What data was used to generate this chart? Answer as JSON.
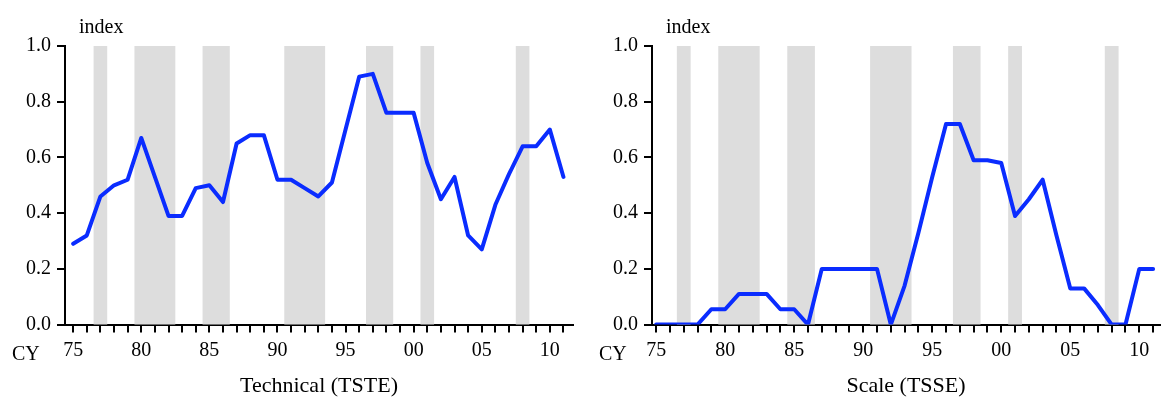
{
  "chart_data": [
    {
      "type": "line",
      "ylabel": "index",
      "xlabel": "Technical (TSTE)",
      "annotations": [
        "CY"
      ],
      "x": [
        1975,
        1976,
        1977,
        1978,
        1979,
        1980,
        1981,
        1982,
        1983,
        1984,
        1985,
        1986,
        1987,
        1988,
        1989,
        1990,
        1991,
        1992,
        1993,
        1994,
        1995,
        1996,
        1997,
        1998,
        1999,
        2000,
        2001,
        2002,
        2003,
        2004,
        2005,
        2006,
        2007,
        2008,
        2009,
        2010,
        2011
      ],
      "series": [
        {
          "color": "#0a2cff",
          "values": [
            0.29,
            0.32,
            0.46,
            0.5,
            0.52,
            0.67,
            0.53,
            0.39,
            0.39,
            0.49,
            0.5,
            0.44,
            0.65,
            0.68,
            0.68,
            0.52,
            0.52,
            0.49,
            0.46,
            0.51,
            0.7,
            0.89,
            0.9,
            0.76,
            0.76,
            0.76,
            0.58,
            0.45,
            0.53,
            0.32,
            0.27,
            0.43,
            0.54,
            0.64,
            0.64,
            0.7,
            0.53
          ]
        }
      ],
      "bands": [
        {
          "axis": "x",
          "from": 1976.5,
          "to": 1977.5,
          "color": "#dddddd"
        },
        {
          "axis": "x",
          "from": 1979.5,
          "to": 1982.5,
          "color": "#dddddd"
        },
        {
          "axis": "x",
          "from": 1984.5,
          "to": 1986.5,
          "color": "#dddddd"
        },
        {
          "axis": "x",
          "from": 1990.5,
          "to": 1993.5,
          "color": "#dddddd"
        },
        {
          "axis": "x",
          "from": 1996.5,
          "to": 1998.5,
          "color": "#dddddd"
        },
        {
          "axis": "x",
          "from": 2000.5,
          "to": 2001.5,
          "color": "#dddddd"
        },
        {
          "axis": "x",
          "from": 2007.5,
          "to": 2008.5,
          "color": "#dddddd"
        }
      ],
      "xlim": [
        1974.4,
        2011.7
      ],
      "xticks": [
        {
          "value": 1975,
          "label": "75"
        },
        {
          "value": 1976,
          "label": null
        },
        {
          "value": 1977,
          "label": null
        },
        {
          "value": 1978,
          "label": null
        },
        {
          "value": 1979,
          "label": null
        },
        {
          "value": 1980,
          "label": "80"
        },
        {
          "value": 1981,
          "label": null
        },
        {
          "value": 1982,
          "label": null
        },
        {
          "value": 1983,
          "label": null
        },
        {
          "value": 1984,
          "label": null
        },
        {
          "value": 1985,
          "label": "85"
        },
        {
          "value": 1986,
          "label": null
        },
        {
          "value": 1987,
          "label": null
        },
        {
          "value": 1988,
          "label": null
        },
        {
          "value": 1989,
          "label": null
        },
        {
          "value": 1990,
          "label": "90"
        },
        {
          "value": 1991,
          "label": null
        },
        {
          "value": 1992,
          "label": null
        },
        {
          "value": 1993,
          "label": null
        },
        {
          "value": 1994,
          "label": null
        },
        {
          "value": 1995,
          "label": "95"
        },
        {
          "value": 1996,
          "label": null
        },
        {
          "value": 1997,
          "label": null
        },
        {
          "value": 1998,
          "label": null
        },
        {
          "value": 1999,
          "label": null
        },
        {
          "value": 2000,
          "label": "00"
        },
        {
          "value": 2001,
          "label": null
        },
        {
          "value": 2002,
          "label": null
        },
        {
          "value": 2003,
          "label": null
        },
        {
          "value": 2004,
          "label": null
        },
        {
          "value": 2005,
          "label": "05"
        },
        {
          "value": 2006,
          "label": null
        },
        {
          "value": 2007,
          "label": null
        },
        {
          "value": 2008,
          "label": null
        },
        {
          "value": 2009,
          "label": null
        },
        {
          "value": 2010,
          "label": "10"
        },
        {
          "value": 2011,
          "label": null
        }
      ],
      "ylim": [
        0,
        1
      ],
      "yticks": [
        {
          "value": 0,
          "label": "0.0"
        },
        {
          "value": 0.2,
          "label": "0.2"
        },
        {
          "value": 0.4,
          "label": "0.4"
        },
        {
          "value": 0.6,
          "label": "0.6"
        },
        {
          "value": 0.8,
          "label": "0.8"
        },
        {
          "value": 1,
          "label": "1.0"
        }
      ],
      "grid": false,
      "legend": false,
      "marker": "none",
      "line_style": "solid"
    },
    {
      "type": "line",
      "ylabel": "index",
      "xlabel": "Scale (TSSE)",
      "annotations": [
        "CY"
      ],
      "x": [
        1975,
        1976,
        1977,
        1978,
        1979,
        1980,
        1981,
        1982,
        1983,
        1984,
        1985,
        1986,
        1987,
        1988,
        1989,
        1990,
        1991,
        1992,
        1993,
        1994,
        1995,
        1996,
        1997,
        1998,
        1999,
        2000,
        2001,
        2002,
        2003,
        2004,
        2005,
        2006,
        2007,
        2008,
        2009,
        2010,
        2011
      ],
      "series": [
        {
          "color": "#0a2cff",
          "values": [
            0,
            0,
            0,
            0,
            0.055,
            0.055,
            0.11,
            0.11,
            0.11,
            0.055,
            0.055,
            0,
            0.2,
            0.2,
            0.2,
            0.2,
            0.2,
            0,
            0.14,
            0.33,
            0.53,
            0.72,
            0.72,
            0.59,
            0.59,
            0.58,
            0.39,
            0.45,
            0.52,
            0.32,
            0.13,
            0.13,
            0.07,
            0,
            0,
            0.2,
            0.2
          ]
        }
      ],
      "bands": [
        {
          "axis": "x",
          "from": 1976.5,
          "to": 1977.5,
          "color": "#dddddd"
        },
        {
          "axis": "x",
          "from": 1979.5,
          "to": 1982.5,
          "color": "#dddddd"
        },
        {
          "axis": "x",
          "from": 1984.5,
          "to": 1986.5,
          "color": "#dddddd"
        },
        {
          "axis": "x",
          "from": 1990.5,
          "to": 1993.5,
          "color": "#dddddd"
        },
        {
          "axis": "x",
          "from": 1996.5,
          "to": 1998.5,
          "color": "#dddddd"
        },
        {
          "axis": "x",
          "from": 2000.5,
          "to": 2001.5,
          "color": "#dddddd"
        },
        {
          "axis": "x",
          "from": 2007.5,
          "to": 2008.5,
          "color": "#dddddd"
        }
      ],
      "xlim": [
        1974.7,
        2011.5
      ],
      "xticks": [
        {
          "value": 1975,
          "label": "75"
        },
        {
          "value": 1976,
          "label": null
        },
        {
          "value": 1977,
          "label": null
        },
        {
          "value": 1978,
          "label": null
        },
        {
          "value": 1979,
          "label": null
        },
        {
          "value": 1980,
          "label": "80"
        },
        {
          "value": 1981,
          "label": null
        },
        {
          "value": 1982,
          "label": null
        },
        {
          "value": 1983,
          "label": null
        },
        {
          "value": 1984,
          "label": null
        },
        {
          "value": 1985,
          "label": "85"
        },
        {
          "value": 1986,
          "label": null
        },
        {
          "value": 1987,
          "label": null
        },
        {
          "value": 1988,
          "label": null
        },
        {
          "value": 1989,
          "label": null
        },
        {
          "value": 1990,
          "label": "90"
        },
        {
          "value": 1991,
          "label": null
        },
        {
          "value": 1992,
          "label": null
        },
        {
          "value": 1993,
          "label": null
        },
        {
          "value": 1994,
          "label": null
        },
        {
          "value": 1995,
          "label": "95"
        },
        {
          "value": 1996,
          "label": null
        },
        {
          "value": 1997,
          "label": null
        },
        {
          "value": 1998,
          "label": null
        },
        {
          "value": 1999,
          "label": null
        },
        {
          "value": 2000,
          "label": "00"
        },
        {
          "value": 2001,
          "label": null
        },
        {
          "value": 2002,
          "label": null
        },
        {
          "value": 2003,
          "label": null
        },
        {
          "value": 2004,
          "label": null
        },
        {
          "value": 2005,
          "label": "05"
        },
        {
          "value": 2006,
          "label": null
        },
        {
          "value": 2007,
          "label": null
        },
        {
          "value": 2008,
          "label": null
        },
        {
          "value": 2009,
          "label": null
        },
        {
          "value": 2010,
          "label": "10"
        },
        {
          "value": 2011,
          "label": null
        }
      ],
      "ylim": [
        0,
        1
      ],
      "yticks": [
        {
          "value": 0,
          "label": "0.0"
        },
        {
          "value": 0.2,
          "label": "0.2"
        },
        {
          "value": 0.4,
          "label": "0.4"
        },
        {
          "value": 0.6,
          "label": "0.6"
        },
        {
          "value": 0.8,
          "label": "0.8"
        },
        {
          "value": 1,
          "label": "1.0"
        }
      ],
      "grid": false,
      "legend": false,
      "marker": "none",
      "line_style": "solid"
    }
  ]
}
